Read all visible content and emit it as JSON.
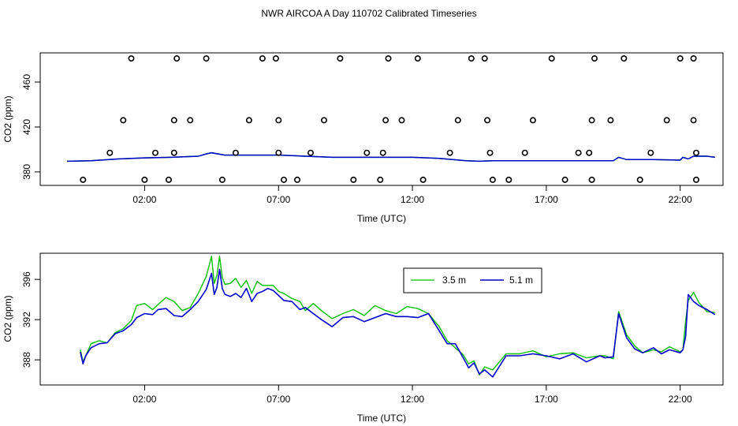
{
  "title": "NWR AIRCOA A  Day 110702  Calibrated Timeseries",
  "colors": {
    "green": "#00c000",
    "blue": "#0000cc",
    "axis": "#000000"
  },
  "chart_data": [
    {
      "type": "scatter",
      "xlabel": "Time (UTC)",
      "ylabel": "CO2 (ppm)",
      "xlim": [
        -1.9,
        23.6
      ],
      "ylim": [
        368,
        486
      ],
      "xticks": [
        2,
        7,
        12,
        17,
        22
      ],
      "xtick_labels": [
        "02:00",
        "07:00",
        "12:00",
        "17:00",
        "22:00"
      ],
      "yticks": [
        380,
        420,
        460
      ],
      "ytick_labels": [
        "380",
        "420",
        "460"
      ],
      "line_series": [
        {
          "x": [
            -0.9,
            0,
            1,
            2,
            3,
            4,
            4.3,
            4.5,
            5,
            6,
            7,
            7.5,
            8,
            9,
            10,
            11,
            12,
            13,
            14,
            14.5,
            15,
            16,
            17,
            18,
            19,
            19.5,
            19.7,
            20,
            21,
            22,
            22.1,
            22.3,
            22.5,
            23,
            23.3
          ],
          "y": [
            389.5,
            390,
            391.5,
            392.5,
            393,
            394,
            396,
            397,
            395,
            395,
            395,
            394.5,
            394,
            393,
            393,
            393,
            393,
            392,
            390,
            389.5,
            390,
            390,
            390,
            390,
            390,
            390,
            393,
            391,
            391,
            390.5,
            393,
            391.5,
            394,
            394,
            393
          ]
        }
      ],
      "points": [
        {
          "x": -0.3,
          "y": 373
        },
        {
          "x": 0.7,
          "y": 397
        },
        {
          "x": 1.2,
          "y": 426
        },
        {
          "x": 1.5,
          "y": 481
        },
        {
          "x": 2.0,
          "y": 373
        },
        {
          "x": 2.4,
          "y": 397
        },
        {
          "x": 2.9,
          "y": 373
        },
        {
          "x": 3.1,
          "y": 397
        },
        {
          "x": 3.1,
          "y": 426
        },
        {
          "x": 3.2,
          "y": 481
        },
        {
          "x": 3.7,
          "y": 426
        },
        {
          "x": 4.3,
          "y": 481
        },
        {
          "x": 4.9,
          "y": 373
        },
        {
          "x": 5.4,
          "y": 397
        },
        {
          "x": 5.9,
          "y": 426
        },
        {
          "x": 6.4,
          "y": 481
        },
        {
          "x": 6.9,
          "y": 481
        },
        {
          "x": 7.0,
          "y": 426
        },
        {
          "x": 7.0,
          "y": 397
        },
        {
          "x": 7.2,
          "y": 373
        },
        {
          "x": 7.7,
          "y": 373
        },
        {
          "x": 8.2,
          "y": 397
        },
        {
          "x": 8.7,
          "y": 426
        },
        {
          "x": 9.3,
          "y": 481
        },
        {
          "x": 9.8,
          "y": 373
        },
        {
          "x": 10.3,
          "y": 397
        },
        {
          "x": 10.8,
          "y": 373
        },
        {
          "x": 10.9,
          "y": 397
        },
        {
          "x": 11.0,
          "y": 426
        },
        {
          "x": 11.1,
          "y": 481
        },
        {
          "x": 11.6,
          "y": 426
        },
        {
          "x": 12.2,
          "y": 481
        },
        {
          "x": 12.4,
          "y": 373
        },
        {
          "x": 13.4,
          "y": 397
        },
        {
          "x": 13.7,
          "y": 426
        },
        {
          "x": 14.2,
          "y": 481
        },
        {
          "x": 14.7,
          "y": 481
        },
        {
          "x": 14.8,
          "y": 426
        },
        {
          "x": 14.9,
          "y": 397
        },
        {
          "x": 15.0,
          "y": 373
        },
        {
          "x": 15.6,
          "y": 373
        },
        {
          "x": 16.2,
          "y": 397
        },
        {
          "x": 16.5,
          "y": 426
        },
        {
          "x": 17.2,
          "y": 481
        },
        {
          "x": 17.7,
          "y": 373
        },
        {
          "x": 18.2,
          "y": 397
        },
        {
          "x": 18.6,
          "y": 397
        },
        {
          "x": 18.7,
          "y": 426
        },
        {
          "x": 18.7,
          "y": 373
        },
        {
          "x": 18.8,
          "y": 481
        },
        {
          "x": 19.4,
          "y": 426
        },
        {
          "x": 19.9,
          "y": 481
        },
        {
          "x": 20.5,
          "y": 373
        },
        {
          "x": 20.9,
          "y": 397
        },
        {
          "x": 21.5,
          "y": 426
        },
        {
          "x": 22.0,
          "y": 481
        },
        {
          "x": 22.5,
          "y": 481
        },
        {
          "x": 22.5,
          "y": 426
        },
        {
          "x": 22.6,
          "y": 397
        },
        {
          "x": 22.6,
          "y": 373
        }
      ]
    },
    {
      "type": "line",
      "xlabel": "Time (UTC)",
      "ylabel": "CO2 (ppm)",
      "xlim": [
        -1.9,
        23.6
      ],
      "ylim": [
        385.5,
        398.6
      ],
      "xticks": [
        2,
        7,
        12,
        17,
        22
      ],
      "xtick_labels": [
        "02:00",
        "07:00",
        "12:00",
        "17:00",
        "22:00"
      ],
      "yticks": [
        388,
        392,
        396
      ],
      "ytick_labels": [
        "388",
        "392",
        "396"
      ],
      "legend_position": "top-right",
      "series": [
        {
          "name": "3.5 m",
          "color": "#00c000",
          "x": [
            -0.4,
            -0.3,
            -0.2,
            0,
            0.3,
            0.6,
            0.9,
            1.2,
            1.5,
            1.7,
            2.0,
            2.3,
            2.5,
            2.8,
            3.1,
            3.4,
            3.7,
            4.0,
            4.3,
            4.5,
            4.6,
            4.7,
            4.8,
            4.9,
            5.0,
            5.2,
            5.4,
            5.6,
            5.8,
            6.0,
            6.2,
            6.4,
            6.6,
            6.8,
            7.0,
            7.2,
            7.5,
            7.8,
            8.0,
            8.3,
            8.6,
            9.0,
            9.4,
            9.8,
            10.2,
            10.6,
            11.0,
            11.4,
            11.8,
            12.2,
            12.6,
            13.0,
            13.3,
            13.6,
            13.9,
            14.1,
            14.3,
            14.5,
            14.7,
            15.0,
            15.5,
            16,
            16.5,
            17,
            17.5,
            18,
            18.5,
            19,
            19.2,
            19.5,
            19.7,
            20,
            20.3,
            20.6,
            21,
            21.3,
            21.6,
            22,
            22.1,
            22.2,
            22.3,
            22.5,
            22.7,
            23,
            23.3
          ],
          "y": [
            389.0,
            387.8,
            388.4,
            389.6,
            389.9,
            389.7,
            390.7,
            391.1,
            391.9,
            393.4,
            393.6,
            393.0,
            393.5,
            394.2,
            393.8,
            392.9,
            393.2,
            394.6,
            396.3,
            398.3,
            395.6,
            396.4,
            398.3,
            396.2,
            395.5,
            395.6,
            396.1,
            395.2,
            395.9,
            394.6,
            395.8,
            395.4,
            395.4,
            395.4,
            394.8,
            394.6,
            394.1,
            393.8,
            392.9,
            393.6,
            392.9,
            392.1,
            392.6,
            393.0,
            392.4,
            393.4,
            392.9,
            392.6,
            393.3,
            393.1,
            392.6,
            391.3,
            389.9,
            389.2,
            388.5,
            387.6,
            387.9,
            386.5,
            387.3,
            387.0,
            388.6,
            388.6,
            388.9,
            388.3,
            388.6,
            388.7,
            388.2,
            388.4,
            388.4,
            388.1,
            392.8,
            390.5,
            389.4,
            388.7,
            389.0,
            388.8,
            389.3,
            388.8,
            389.0,
            391.8,
            393.9,
            394.7,
            393.7,
            392.8,
            392.7
          ]
        },
        {
          "name": "5.1 m",
          "color": "#0000cc",
          "x": [
            -0.4,
            -0.3,
            -0.2,
            0,
            0.3,
            0.6,
            0.9,
            1.2,
            1.5,
            1.7,
            2.0,
            2.3,
            2.5,
            2.8,
            3.1,
            3.4,
            3.7,
            4.0,
            4.3,
            4.5,
            4.6,
            4.7,
            4.8,
            4.9,
            5.0,
            5.2,
            5.4,
            5.6,
            5.8,
            6.0,
            6.2,
            6.4,
            6.6,
            6.8,
            7.0,
            7.2,
            7.5,
            7.8,
            8.0,
            8.3,
            8.6,
            9.0,
            9.4,
            9.8,
            10.2,
            10.6,
            11.0,
            11.4,
            11.8,
            12.2,
            12.6,
            13.0,
            13.3,
            13.6,
            13.9,
            14.1,
            14.3,
            14.5,
            14.7,
            15.0,
            15.5,
            16,
            16.5,
            17,
            17.5,
            18,
            18.5,
            19,
            19.2,
            19.5,
            19.7,
            20,
            20.3,
            20.6,
            21,
            21.3,
            21.6,
            22,
            22.1,
            22.2,
            22.3,
            22.5,
            22.7,
            23,
            23.3
          ],
          "y": [
            388.8,
            387.6,
            388.4,
            389.2,
            389.6,
            389.7,
            390.6,
            390.9,
            391.5,
            392.2,
            392.6,
            392.5,
            393.0,
            393.1,
            392.4,
            392.3,
            393.0,
            393.8,
            395.0,
            396.6,
            394.5,
            395.2,
            397.0,
            395.1,
            394.5,
            394.3,
            394.6,
            394.2,
            395.1,
            393.8,
            394.6,
            394.8,
            395.1,
            394.9,
            394.4,
            393.9,
            393.8,
            393.0,
            393.2,
            392.6,
            392.0,
            391.3,
            392.2,
            392.3,
            391.8,
            392.2,
            392.6,
            392.3,
            392.3,
            392.2,
            392.6,
            390.9,
            389.6,
            389.6,
            388.2,
            387.2,
            387.7,
            386.6,
            387.0,
            386.3,
            388.4,
            388.4,
            388.6,
            388.4,
            388.1,
            388.6,
            387.8,
            388.4,
            388.2,
            388.3,
            392.6,
            390.2,
            389.1,
            388.7,
            389.2,
            388.6,
            389.0,
            388.7,
            389.0,
            390.3,
            394.5,
            393.8,
            393.4,
            393.0,
            392.5
          ]
        }
      ]
    }
  ]
}
